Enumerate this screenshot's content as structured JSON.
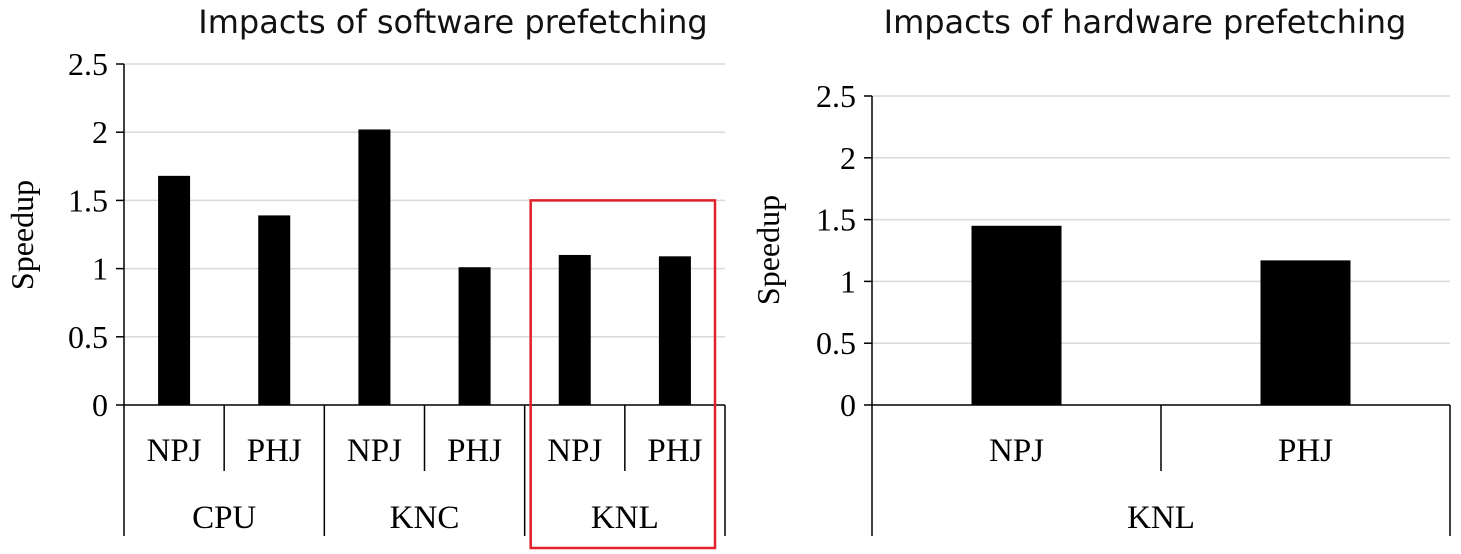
{
  "chart_data": [
    {
      "type": "bar",
      "title": "Impacts of software prefetching",
      "ylabel": "Speedup",
      "xlabel": "",
      "ylim": [
        0,
        2.5
      ],
      "yticks": [
        "0",
        "0.5",
        "1",
        "1.5",
        "2",
        "2.5"
      ],
      "groups": [
        "CPU",
        "KNC",
        "KNL"
      ],
      "categories": [
        "NPJ",
        "PHJ",
        "NPJ",
        "PHJ",
        "NPJ",
        "PHJ"
      ],
      "values": [
        1.68,
        1.39,
        2.02,
        1.01,
        1.1,
        1.09
      ],
      "highlight_group": "KNL",
      "highlight_color": "#e0202a"
    },
    {
      "type": "bar",
      "title": "Impacts of hardware prefetching",
      "ylabel": "Speedup",
      "xlabel": "",
      "ylim": [
        0,
        2.5
      ],
      "yticks": [
        "0",
        "0.5",
        "1",
        "1.5",
        "2",
        "2.5"
      ],
      "groups": [
        "KNL"
      ],
      "categories": [
        "NPJ",
        "PHJ"
      ],
      "values": [
        1.45,
        1.17
      ]
    }
  ]
}
